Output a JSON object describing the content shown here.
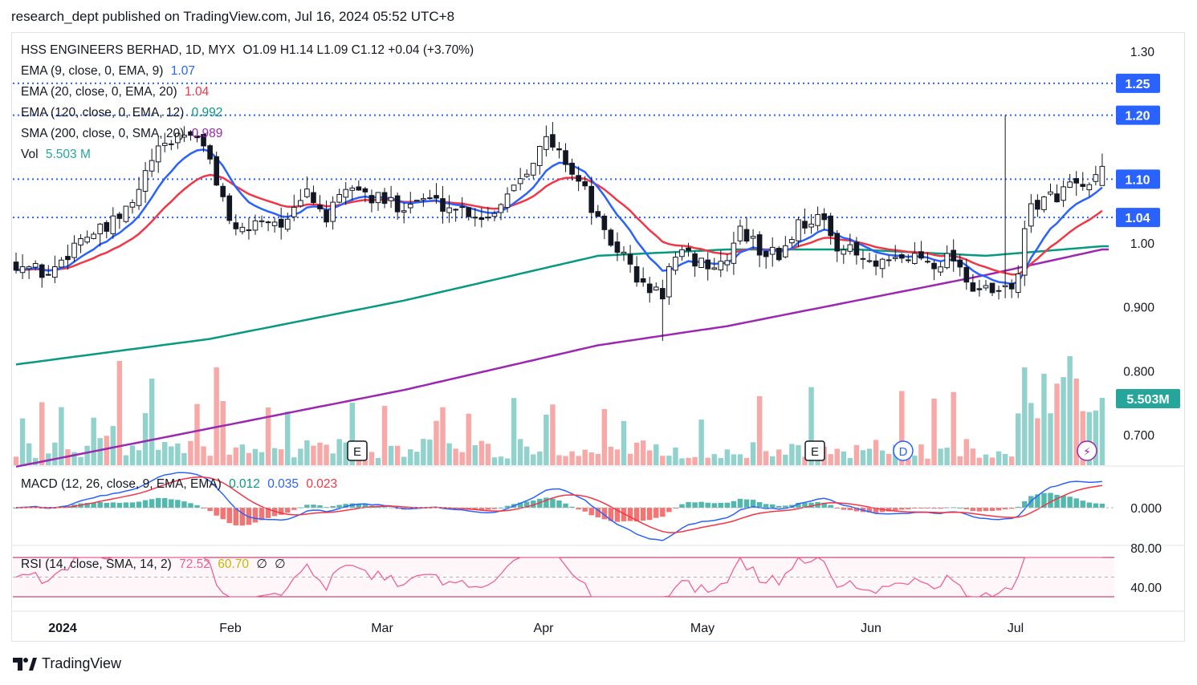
{
  "header": {
    "text": "research_dept published on TradingView.com, Jul 16, 2024 05:52 UTC+8"
  },
  "legend": {
    "title": "HSS ENGINEERS BERHAD, 1D, MYX",
    "ohlc": "O1.09  H1.14  L1.09  C1.12  +0.04 (+3.70%)",
    "ema9": {
      "label": "EMA (9, close, 0, EMA, 9)",
      "value": "1.07",
      "color": "#2962ff"
    },
    "ema20": {
      "label": "EMA (20, close, 0, EMA, 20)",
      "value": "1.04",
      "color": "#f23645"
    },
    "ema120": {
      "label": "EMA (120, close, 0, EMA, 12)",
      "value": "0.992",
      "color": "#089981"
    },
    "sma200": {
      "label": "SMA (200, close, 0, SMA, 20)",
      "value": "0.989",
      "color": "#9c27b0"
    },
    "vol": {
      "label": "Vol",
      "value": "5.503 M",
      "color": "#26a69a"
    },
    "macd": {
      "label": "MACD (12, 26, close, 9, EMA, EMA)",
      "v1": "0.012",
      "v2": "0.035",
      "v3": "0.023"
    },
    "rsi": {
      "label": "RSI (14, close, SMA, 14, 2)",
      "v1": "72.52",
      "v2": "60.70",
      "v3": "∅",
      "v4": "∅"
    }
  },
  "footer": {
    "brand": "TradingView"
  },
  "chart_data": {
    "type": "candlestick",
    "price_axis": {
      "ticks": [
        1.3,
        1.0,
        0.9,
        0.8,
        0.7
      ],
      "tick_labels": [
        "1.30",
        "1.00",
        "0.900",
        "0.800",
        "0.700"
      ],
      "ylim": [
        0.65,
        1.32
      ]
    },
    "price_levels": [
      {
        "value": 1.25,
        "label": "1.25"
      },
      {
        "value": 1.2,
        "label": "1.20"
      },
      {
        "value": 1.1,
        "label": "1.10"
      },
      {
        "value": 1.04,
        "label": "1.04"
      }
    ],
    "volume_badge": "5.503M",
    "x_axis": {
      "labels": [
        "2024",
        "Feb",
        "Mar",
        "Apr",
        "May",
        "Jun",
        "Jul"
      ]
    },
    "event_markers": [
      {
        "type": "E",
        "label": "E",
        "date": "2024-02-26"
      },
      {
        "type": "E",
        "label": "E",
        "date": "2024-05-23"
      },
      {
        "type": "D",
        "label": "D",
        "date": "2024-06-11"
      },
      {
        "type": "flash",
        "label": "⚡",
        "date": "2024-07-15"
      }
    ],
    "colors": {
      "up": "#26a69a",
      "down": "#ef5350",
      "candle": "#131722",
      "level": "#2962ff",
      "rsi": "#f06292"
    },
    "close_anchors": [
      [
        0,
        0.97
      ],
      [
        5,
        0.95
      ],
      [
        10,
        1.01
      ],
      [
        14,
        1.02
      ],
      [
        18,
        1.06
      ],
      [
        21,
        1.13
      ],
      [
        25,
        1.17
      ],
      [
        28,
        1.17
      ],
      [
        31,
        1.1
      ],
      [
        34,
        1.01
      ],
      [
        38,
        1.04
      ],
      [
        42,
        1.03
      ],
      [
        45,
        1.08
      ],
      [
        48,
        1.04
      ],
      [
        52,
        1.09
      ],
      [
        55,
        1.07
      ],
      [
        59,
        1.06
      ],
      [
        63,
        1.07
      ],
      [
        66,
        1.06
      ],
      [
        70,
        1.05
      ],
      [
        73,
        1.04
      ],
      [
        76,
        1.08
      ],
      [
        79,
        1.12
      ],
      [
        82,
        1.16
      ],
      [
        85,
        1.13
      ],
      [
        88,
        1.08
      ],
      [
        91,
        1.01
      ],
      [
        94,
        0.98
      ],
      [
        97,
        0.93
      ],
      [
        100,
        0.92
      ],
      [
        101,
        0.96
      ],
      [
        103,
        0.98
      ],
      [
        106,
        0.97
      ],
      [
        109,
        0.96
      ],
      [
        112,
        1.02
      ],
      [
        115,
        0.99
      ],
      [
        118,
        0.98
      ],
      [
        121,
        1.03
      ],
      [
        124,
        1.04
      ],
      [
        127,
        1.0
      ],
      [
        130,
        0.98
      ],
      [
        133,
        0.96
      ],
      [
        136,
        0.97
      ],
      [
        139,
        0.98
      ],
      [
        142,
        0.97
      ],
      [
        145,
        0.98
      ],
      [
        148,
        0.93
      ],
      [
        151,
        0.92
      ],
      [
        154,
        0.93
      ],
      [
        155,
        0.96
      ],
      [
        157,
        1.06
      ],
      [
        160,
        1.07
      ],
      [
        163,
        1.09
      ],
      [
        166,
        1.08
      ],
      [
        168,
        1.12
      ]
    ],
    "ema120_anchors": [
      [
        0,
        0.81
      ],
      [
        30,
        0.85
      ],
      [
        60,
        0.91
      ],
      [
        90,
        0.98
      ],
      [
        110,
        0.99
      ],
      [
        130,
        0.99
      ],
      [
        150,
        0.98
      ],
      [
        168,
        0.995
      ]
    ],
    "sma200_anchors": [
      [
        0,
        0.65
      ],
      [
        30,
        0.71
      ],
      [
        60,
        0.77
      ],
      [
        90,
        0.84
      ],
      [
        110,
        0.87
      ],
      [
        130,
        0.91
      ],
      [
        150,
        0.95
      ],
      [
        168,
        0.99
      ]
    ],
    "macd_axis": {
      "ticks": [
        0.0
      ],
      "tick_labels": [
        "0.000"
      ]
    },
    "rsi_axis": {
      "ticks": [
        80,
        40
      ],
      "tick_labels": [
        "80.00",
        "40.00"
      ],
      "bands": [
        70,
        50,
        30
      ]
    }
  }
}
